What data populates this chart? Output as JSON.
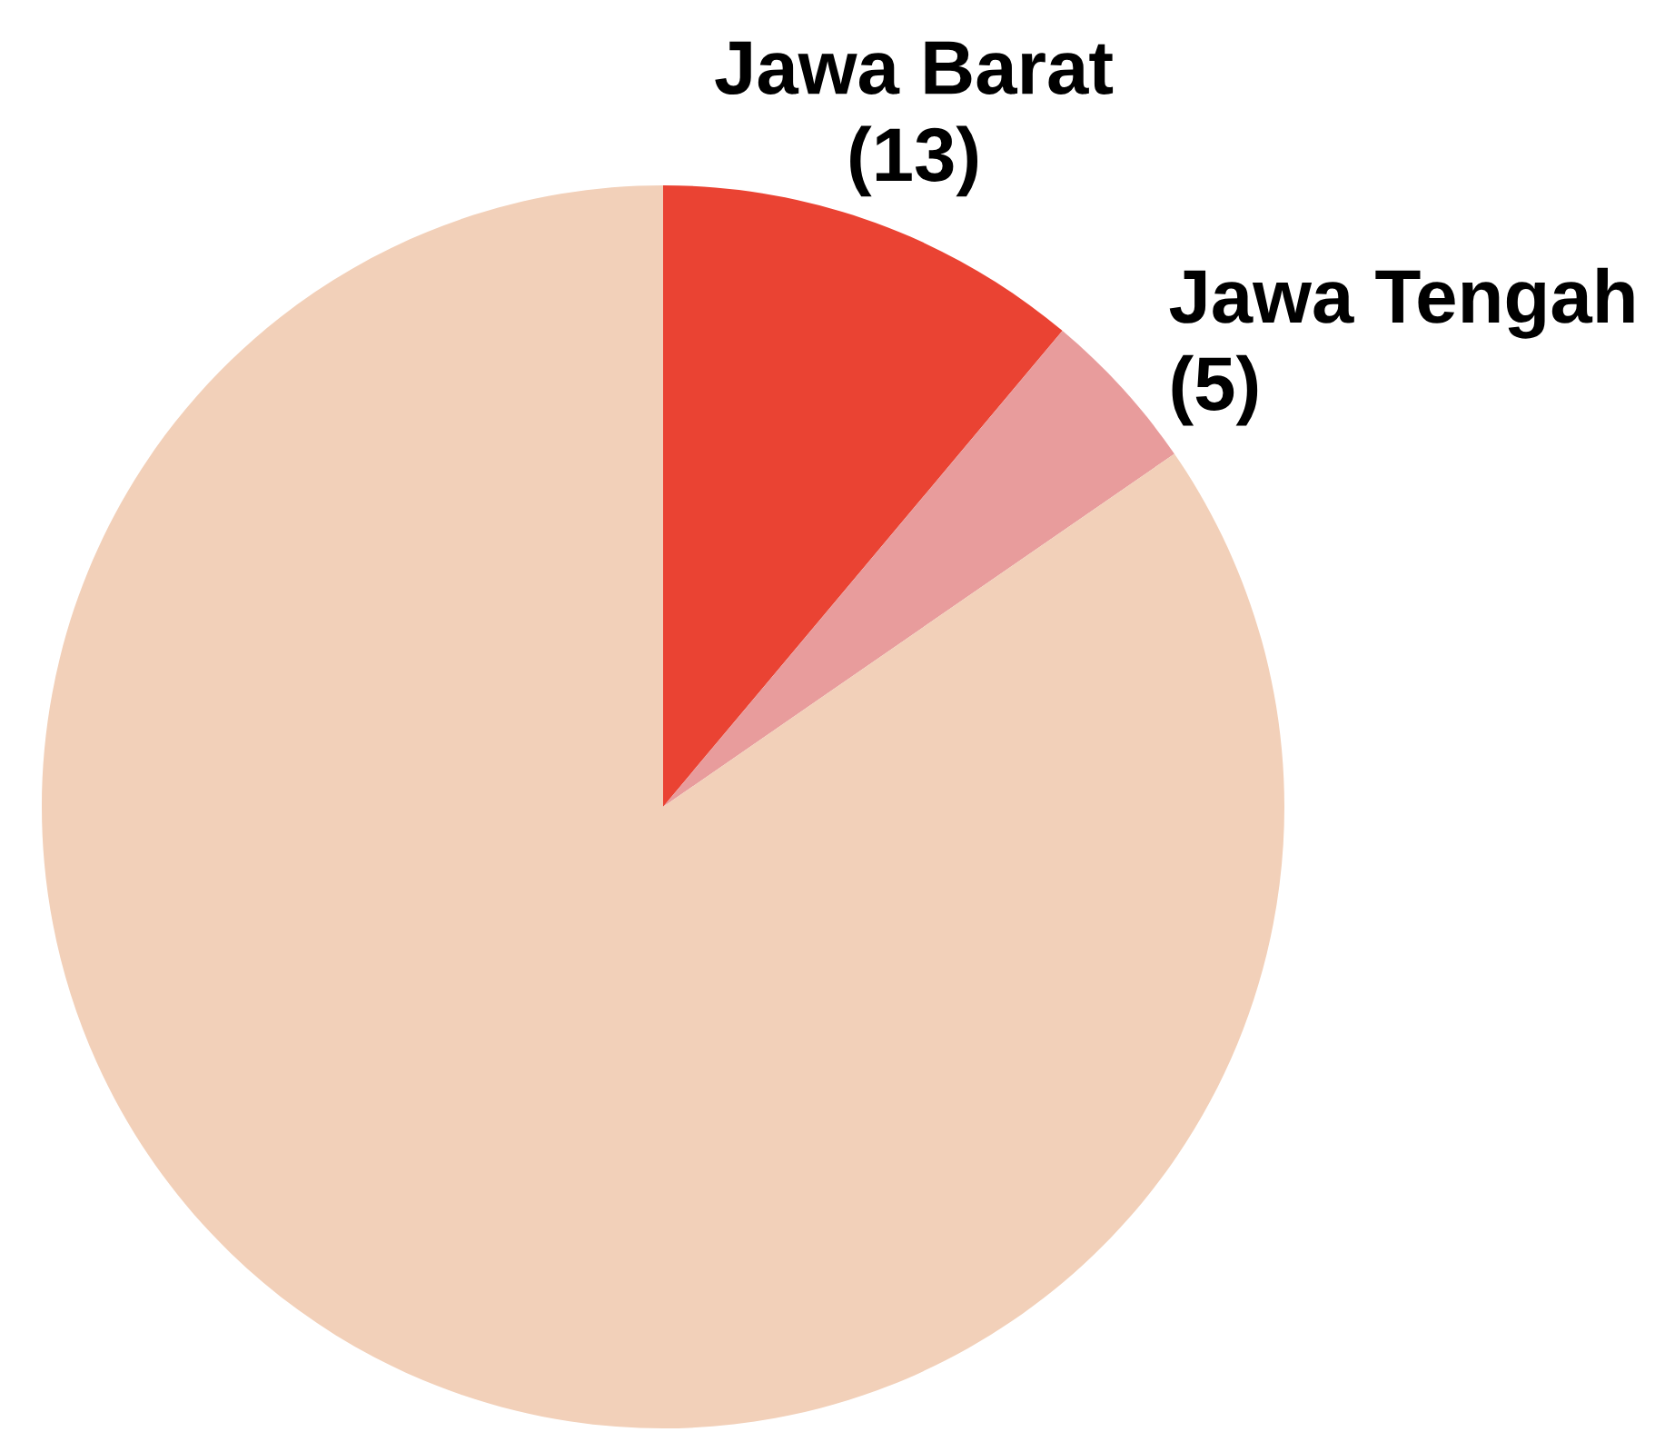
{
  "chart_data": {
    "type": "pie",
    "categories": [
      "Jawa Barat",
      "Jawa Tengah",
      null
    ],
    "values": [
      13,
      5,
      99
    ],
    "value_labels": [
      "(13)",
      "(5)",
      null
    ],
    "colors": [
      "#ea4333",
      "#e89c9c",
      "#f2d0b9"
    ]
  }
}
